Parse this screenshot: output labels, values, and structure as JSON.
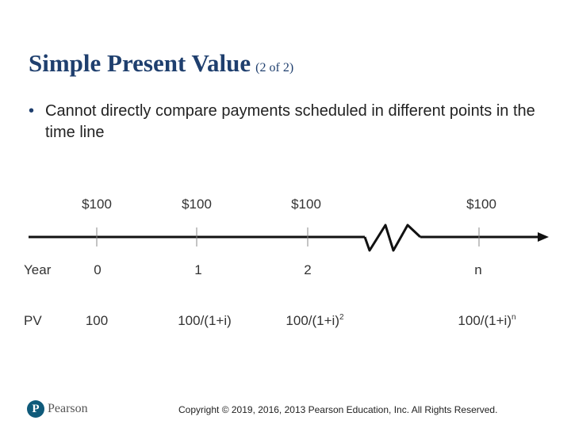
{
  "slide": {
    "title": "Simple Present Value",
    "subtitle": "(2 of 2)",
    "bullet_marker": "•",
    "bullet": "Cannot directly compare payments scheduled in different points in the time line"
  },
  "timeline": {
    "payments": [
      "$100",
      "$100",
      "$100",
      "$100"
    ],
    "year_label": "Year",
    "years": [
      "0",
      "1",
      "2",
      "n"
    ],
    "pv_label": "PV",
    "pv": [
      {
        "base": "100",
        "exp": ""
      },
      {
        "base": "100/(1+i)",
        "exp": ""
      },
      {
        "base": "100/(1+i)",
        "exp": "2"
      },
      {
        "base": "100/(1+i)",
        "exp": "n"
      }
    ]
  },
  "footer": {
    "logo_text": "Pearson",
    "logo_glyph": "P",
    "copyright": "Copyright © 2019, 2016, 2013 Pearson Education, Inc. All Rights Reserved."
  },
  "colors": {
    "title": "#1f3f6e",
    "logo": "#0f5a7a"
  }
}
